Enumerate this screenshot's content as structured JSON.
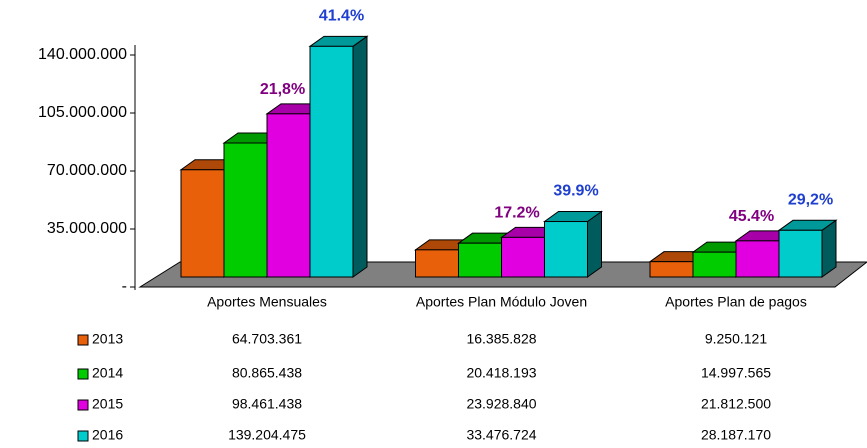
{
  "chart_data": {
    "type": "bar3d",
    "categories": [
      "Aportes Mensuales",
      "Aportes Plan Módulo Joven",
      "Aportes Plan de pagos"
    ],
    "series": [
      {
        "name": "2013",
        "color": "#e8600a",
        "values": [
          64703361,
          16385828,
          9250121
        ],
        "value_labels": [
          "64.703.361",
          "16.385.828",
          "9.250.121"
        ]
      },
      {
        "name": "2014",
        "color": "#00cc00",
        "values": [
          80865438,
          20418193,
          14997565
        ],
        "value_labels": [
          "80.865.438",
          "20.418.193",
          "14.997.565"
        ]
      },
      {
        "name": "2015",
        "color": "#e000e0",
        "values": [
          98461438,
          23928840,
          21812500
        ],
        "value_labels": [
          "98.461.438",
          "23.928.840",
          "21.812.500"
        ],
        "growth_labels": [
          "21,8%",
          "17.2%",
          "45.4%"
        ],
        "growth_color": "#800080"
      },
      {
        "name": "2016",
        "color": "#00cccc",
        "values": [
          139204475,
          33476724,
          28187170
        ],
        "value_labels": [
          "139.204.475",
          "33.476.724",
          "28.187.170"
        ],
        "growth_labels": [
          "41.4%",
          "39.9%",
          "29,2%"
        ],
        "growth_color": "#1f3fcf"
      }
    ],
    "ylim": [
      0,
      140000000
    ],
    "yticks": [
      {
        "value": 0,
        "label": "-"
      },
      {
        "value": 35000000,
        "label": "35.000.000"
      },
      {
        "value": 70000000,
        "label": "70.000.000"
      },
      {
        "value": 105000000,
        "label": "105.000.000"
      },
      {
        "value": 140000000,
        "label": "140.000.000"
      }
    ],
    "data_table": true
  }
}
